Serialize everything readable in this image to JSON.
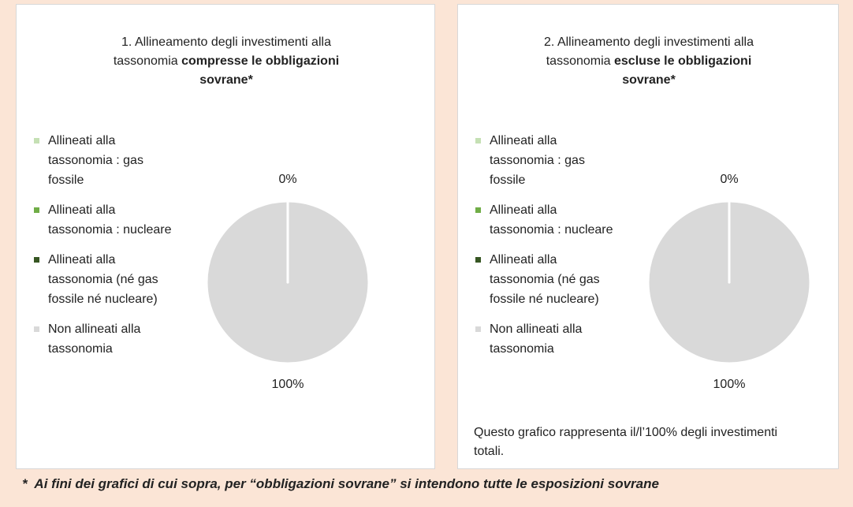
{
  "chart_data": [
    {
      "type": "pie",
      "title": "1. Allineamento degli investimenti alla tassonomia",
      "title_bold": "compresse le obbligazioni sovrane*",
      "categories": [
        "Allineati alla tassonomia : gas fossile",
        "Allineati alla tassonomia : nucleare",
        "Allineati alla tassonomia (né gas fossile né nucleare)",
        "Non allineati alla tassonomia"
      ],
      "values": [
        0,
        0,
        0,
        100
      ],
      "value_labels": [
        "0%",
        null,
        null,
        "100%"
      ],
      "colors": [
        "#c5e0b4",
        "#70ad47",
        "#375623",
        "#d9d9d9"
      ],
      "legend": "left"
    },
    {
      "type": "pie",
      "title": "2. Allineamento degli investimenti alla tassonomia",
      "title_bold": "escluse le obbligazioni sovrane*",
      "categories": [
        "Allineati alla tassonomia : gas fossile",
        "Allineati alla tassonomia : nucleare",
        "Allineati alla tassonomia (né gas fossile né nucleare)",
        "Non allineati alla tassonomia"
      ],
      "values": [
        0,
        0,
        0,
        100
      ],
      "value_labels": [
        "0%",
        null,
        null,
        "100%"
      ],
      "colors": [
        "#c5e0b4",
        "#70ad47",
        "#375623",
        "#d9d9d9"
      ],
      "legend": "left",
      "note": "Questo grafico rappresenta il/l’100% degli investimenti totali."
    }
  ],
  "footnote": "*  Ai fini dei grafici di cui sopra, per “obbligazioni sovrane” si intendono tutte le esposizioni sovrane"
}
